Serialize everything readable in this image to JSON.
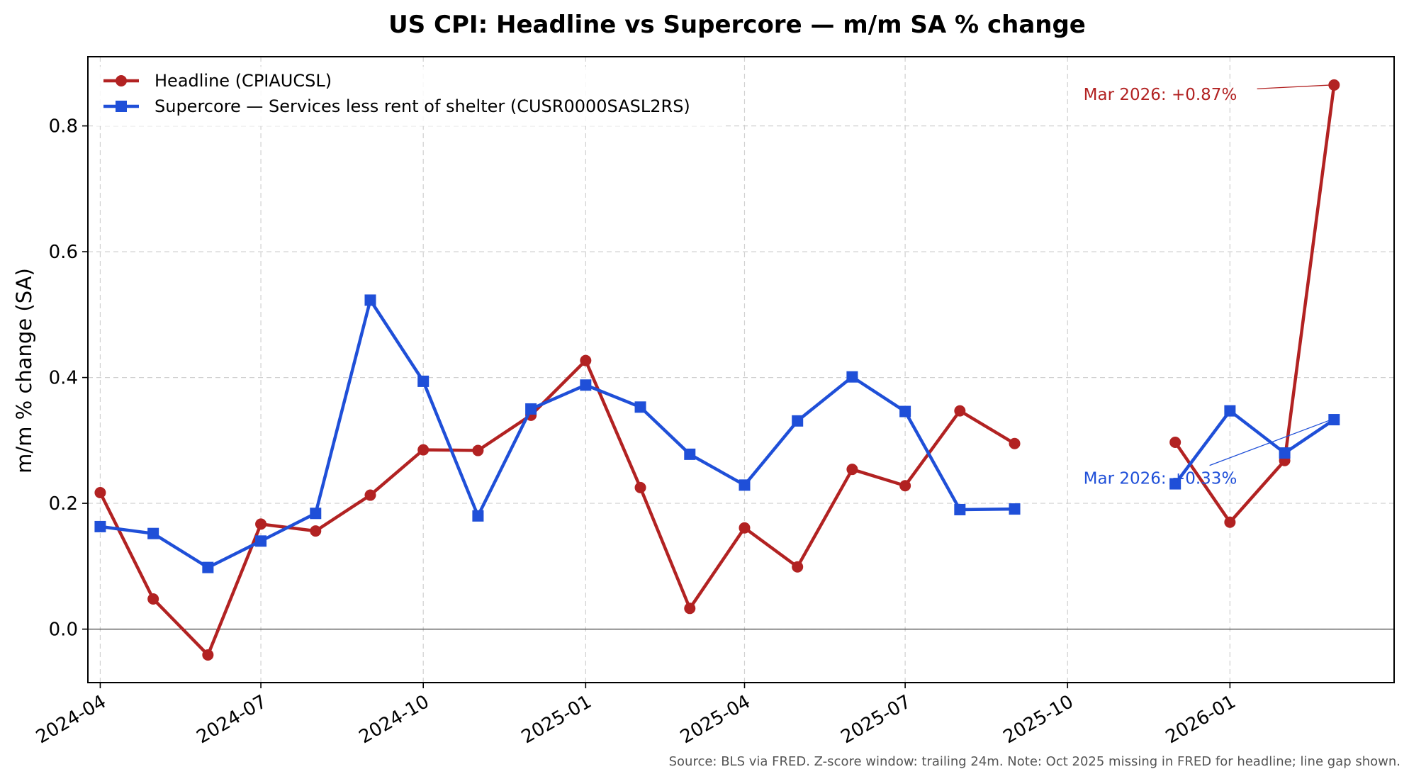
{
  "chart_data": {
    "type": "line",
    "title": "US CPI: Headline vs Supercore — m/m SA % change",
    "xlabel": "",
    "ylabel": "m/m % change (SA)",
    "ylim": [
      -0.085,
      0.91
    ],
    "yticks": [
      0.0,
      0.2,
      0.4,
      0.6,
      0.8
    ],
    "ytick_labels": [
      "0.0",
      "0.2",
      "0.4",
      "0.6",
      "0.8"
    ],
    "xlim": [
      "2024-03-25",
      "2026-04-04"
    ],
    "xticks": [
      "2024-04",
      "2024-07",
      "2024-10",
      "2025-01",
      "2025-04",
      "2025-07",
      "2025-10",
      "2026-01"
    ],
    "grid": true,
    "zero_line": true,
    "legend_position": "top-left",
    "x": [
      "2024-04",
      "2024-05",
      "2024-06",
      "2024-07",
      "2024-08",
      "2024-09",
      "2024-10",
      "2024-11",
      "2024-12",
      "2025-01",
      "2025-02",
      "2025-03",
      "2025-04",
      "2025-05",
      "2025-06",
      "2025-07",
      "2025-08",
      "2025-09",
      "2025-10",
      "2025-11",
      "2025-12",
      "2026-01",
      "2026-02",
      "2026-03"
    ],
    "series": [
      {
        "name": "Headline (CPIAUCSL)",
        "color": "#b22222",
        "marker": "circle",
        "values": [
          0.217,
          0.048,
          -0.041,
          0.167,
          0.156,
          0.213,
          0.285,
          0.284,
          0.34,
          0.427,
          0.225,
          0.033,
          0.161,
          0.099,
          0.254,
          0.228,
          0.347,
          0.295,
          null,
          0.297,
          0.17,
          0.268,
          0.865
        ]
      },
      {
        "name": "Supercore — Services less rent of shelter (CUSR0000SASL2RS)",
        "color": "#1f4fd8",
        "marker": "square",
        "values": [
          0.163,
          0.152,
          0.098,
          0.14,
          0.184,
          0.523,
          0.394,
          0.18,
          0.35,
          0.388,
          0.353,
          0.278,
          0.229,
          0.331,
          0.401,
          0.346,
          0.19,
          0.191,
          null,
          0.231,
          0.347,
          0.28,
          0.333
        ]
      }
    ],
    "dates": [
      "2024-04",
      "2024-05",
      "2024-06",
      "2024-07",
      "2024-08",
      "2024-09",
      "2024-10",
      "2024-11",
      "2024-12",
      "2025-01",
      "2025-02",
      "2025-03",
      "2025-04",
      "2025-05",
      "2025-06",
      "2025-07",
      "2025-08",
      "2025-09",
      "2025-10",
      "2025-12",
      "2026-01",
      "2026-02",
      "2026-03"
    ],
    "annotations": [
      {
        "text": "Mar 2026: +0.87%",
        "series": 0,
        "point_date": "2026-03",
        "point_value": 0.865,
        "text_date": "2025-10-10",
        "text_value": 0.85,
        "color": "#b22222"
      },
      {
        "text": "Mar 2026: +0.33%",
        "series": 1,
        "point_date": "2026-03",
        "point_value": 0.333,
        "text_date": "2025-10-10",
        "text_value": 0.24,
        "color": "#1f4fd8"
      }
    ],
    "footnote": "Source: BLS via FRED. Z-score window: trailing 24m. Note: Oct 2025 missing in FRED for headline; line gap shown."
  }
}
